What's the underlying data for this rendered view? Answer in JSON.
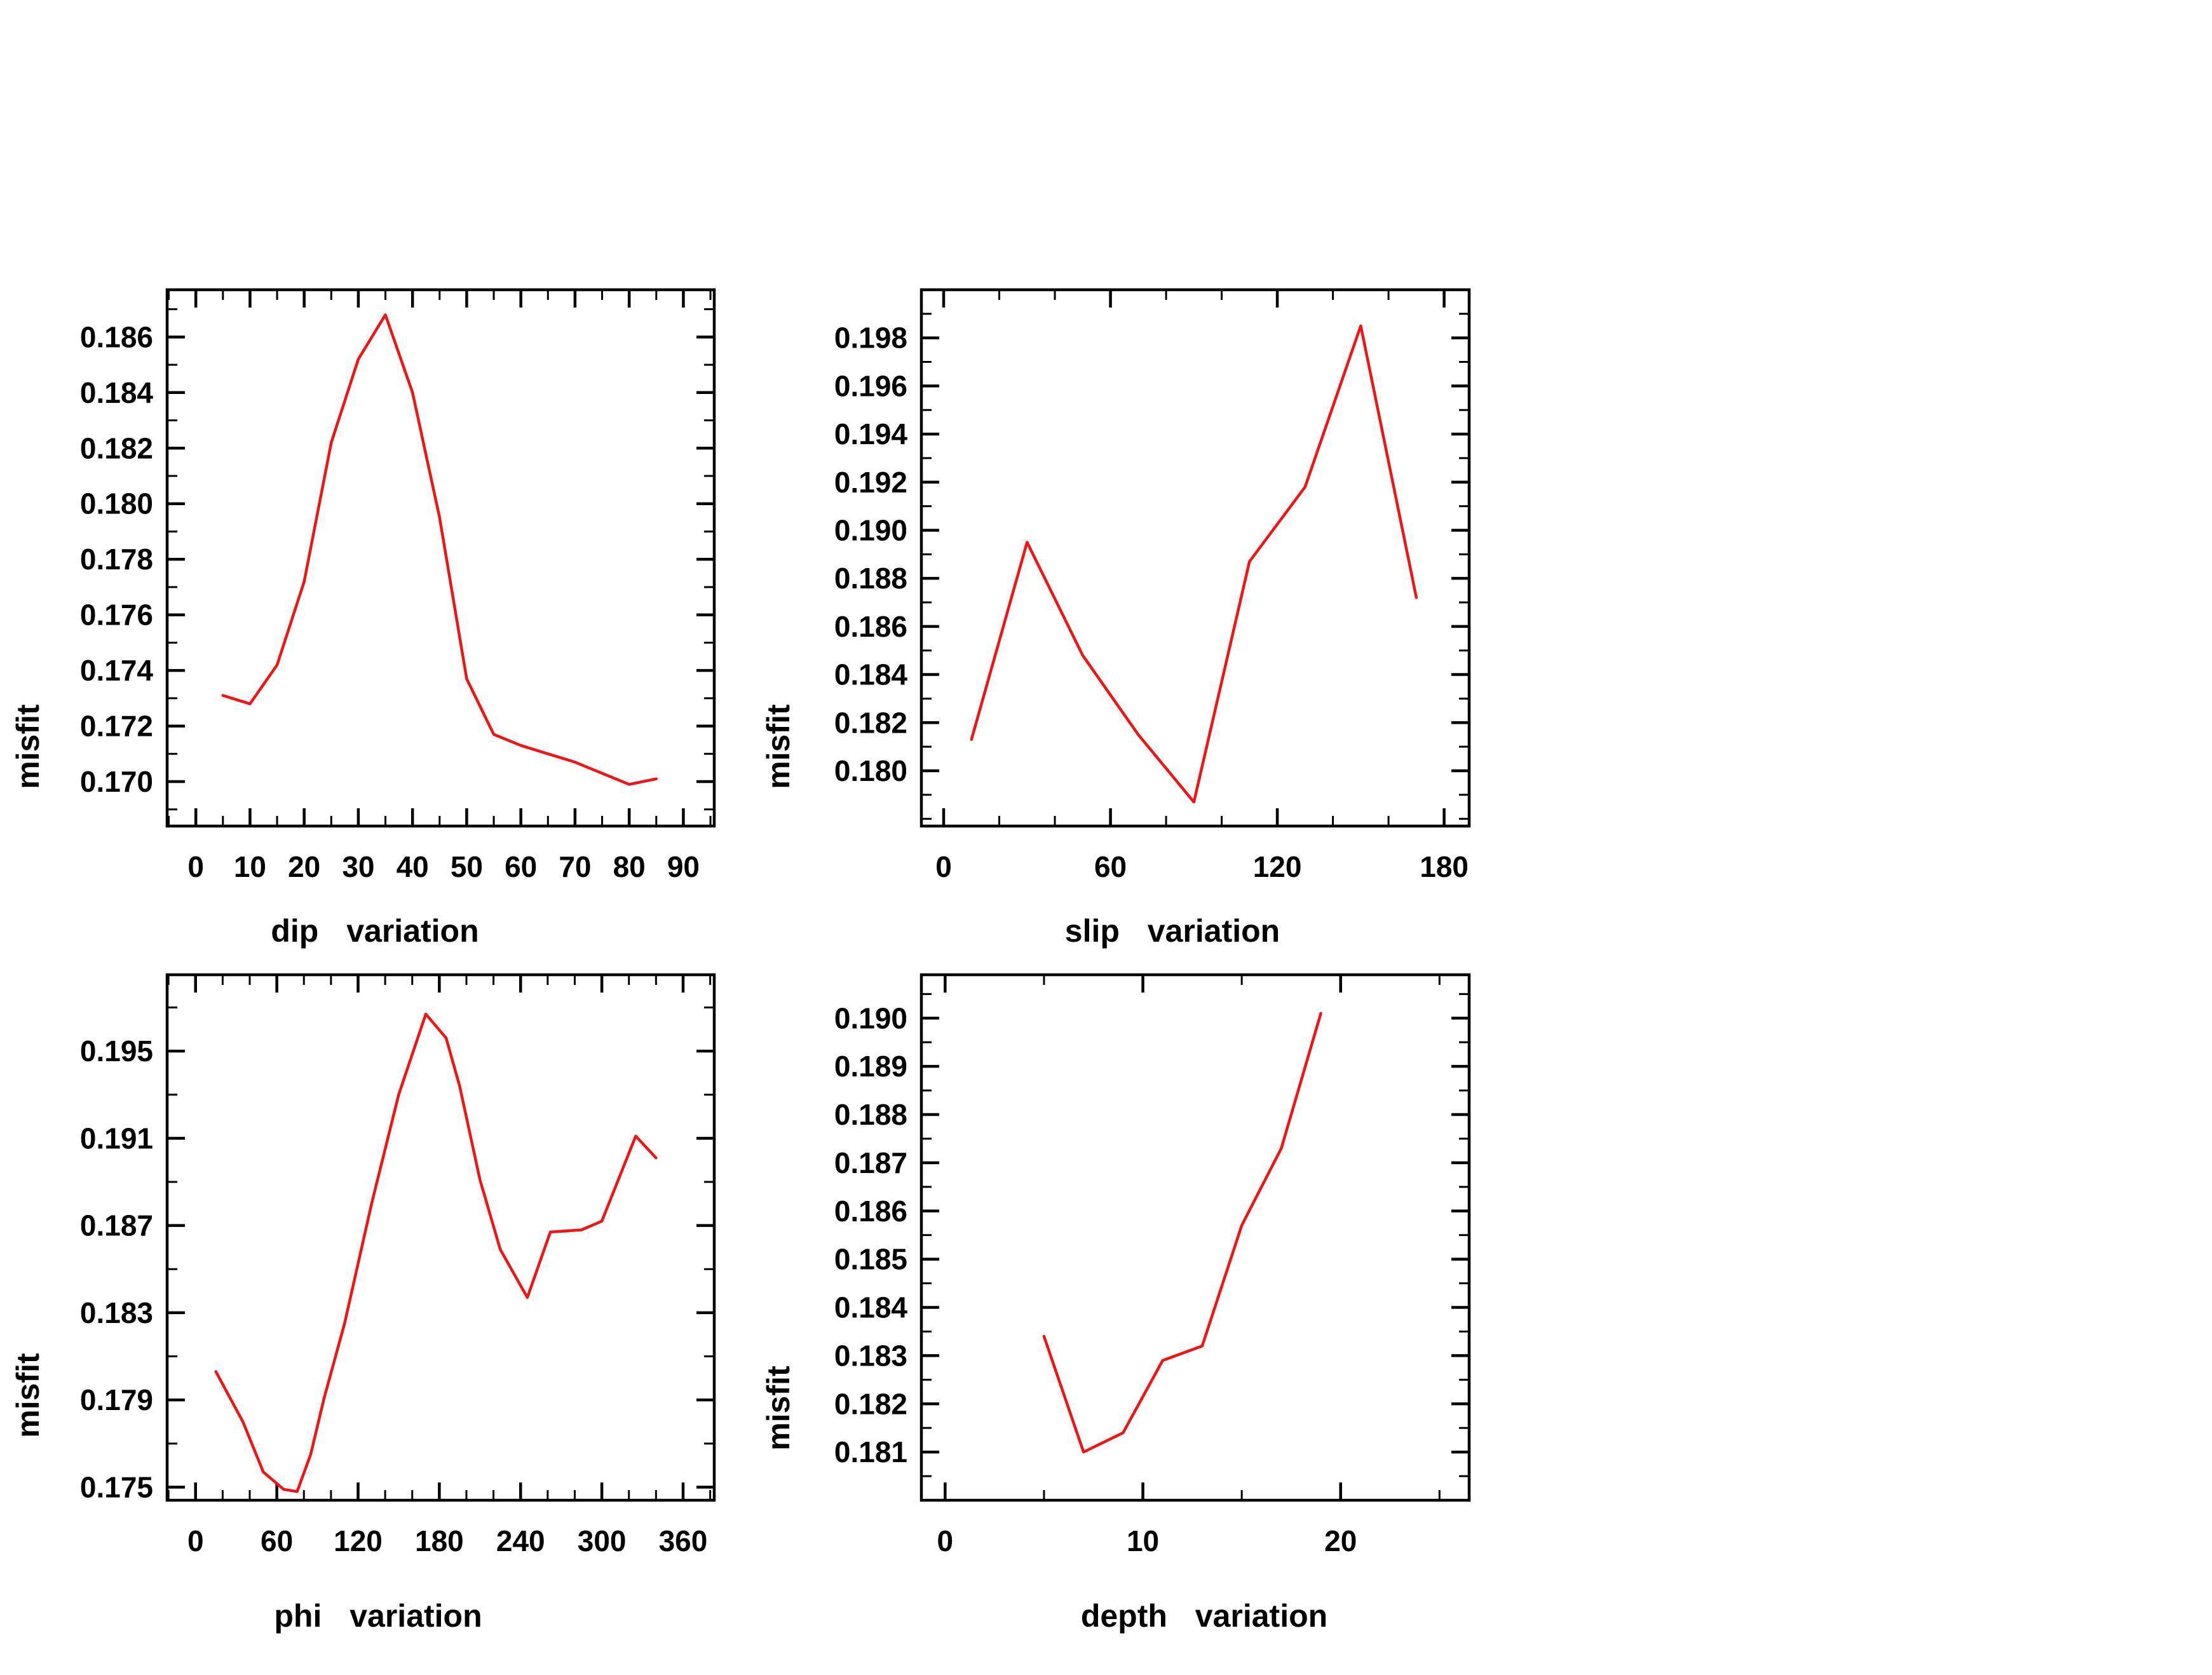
{
  "colors": {
    "background": "#ffffff",
    "axis": "#000000",
    "line": "#f01414"
  },
  "chart_data": [
    {
      "id": "dip",
      "type": "line",
      "title": "",
      "xlabel": "dip variation",
      "ylabel": "misfit",
      "grid": false,
      "legend": null,
      "line_color": "#f01414",
      "x": [
        5,
        10,
        15,
        20,
        25,
        30,
        35,
        40,
        45,
        50,
        55,
        60,
        65,
        70,
        75,
        80,
        85
      ],
      "y": [
        0.1731,
        0.1728,
        0.1742,
        0.1772,
        0.1822,
        0.1852,
        0.1868,
        0.184,
        0.1795,
        0.1737,
        0.1717,
        0.1713,
        0.171,
        0.1707,
        0.1703,
        0.1699,
        0.1701
      ],
      "xlim": [
        -5.3,
        95.7
      ],
      "ylim": [
        0.1684,
        0.1877
      ],
      "xticks": {
        "values": [
          0,
          10,
          20,
          30,
          40,
          50,
          60,
          70,
          80,
          90
        ],
        "labels": [
          "0",
          "10",
          "20",
          "30",
          "40",
          "50",
          "60",
          "70",
          "80",
          "90"
        ],
        "minor_step": 5
      },
      "yticks": {
        "values": [
          0.186,
          0.184,
          0.182,
          0.18,
          0.178,
          0.176,
          0.174,
          0.172,
          0.17
        ],
        "labels": [
          "0.186",
          "0.184",
          "0.182",
          "0.180",
          "0.178",
          "0.176",
          "0.174",
          "0.172",
          "0.170"
        ],
        "minor_step": 0.001
      }
    },
    {
      "id": "slip",
      "type": "line",
      "title": "",
      "xlabel": "slip variation",
      "ylabel": "misfit",
      "grid": false,
      "legend": null,
      "line_color": "#f01414",
      "x": [
        10,
        30,
        50,
        70,
        90,
        110,
        130,
        150,
        170
      ],
      "y": [
        0.1813,
        0.1895,
        0.1848,
        0.1815,
        0.1787,
        0.1887,
        0.1918,
        0.1985,
        0.1872
      ],
      "xlim": [
        -8,
        189
      ],
      "ylim": [
        0.1777,
        0.2
      ],
      "xticks": {
        "values": [
          0,
          60,
          120,
          180
        ],
        "labels": [
          "0",
          "60",
          "120",
          "180"
        ],
        "minor_step": 20
      },
      "yticks": {
        "values": [
          0.198,
          0.196,
          0.194,
          0.192,
          0.19,
          0.188,
          0.186,
          0.184,
          0.182,
          0.18
        ],
        "labels": [
          "0.198",
          "0.196",
          "0.194",
          "0.192",
          "0.190",
          "0.188",
          "0.186",
          "0.184",
          "0.182",
          "0.180"
        ],
        "minor_step": 0.001
      }
    },
    {
      "id": "phi",
      "type": "line",
      "title": "",
      "xlabel": "phi variation",
      "ylabel": "misfit",
      "grid": false,
      "legend": null,
      "line_color": "#f01414",
      "x": [
        15,
        35,
        50,
        65,
        75,
        85,
        95,
        110,
        130,
        150,
        170,
        185,
        195,
        210,
        225,
        245,
        262,
        285,
        300,
        325,
        340
      ],
      "y": [
        0.1803,
        0.178,
        0.1757,
        0.1749,
        0.1748,
        0.1765,
        0.1791,
        0.1825,
        0.188,
        0.193,
        0.1967,
        0.1956,
        0.1934,
        0.1891,
        0.1859,
        0.1837,
        0.1867,
        0.1868,
        0.1872,
        0.1911,
        0.1901
      ],
      "xlim": [
        -21,
        383
      ],
      "ylim": [
        0.1744,
        0.1985
      ],
      "xticks": {
        "values": [
          0,
          60,
          120,
          180,
          240,
          300,
          360
        ],
        "labels": [
          "0",
          "60",
          "120",
          "180",
          "240",
          "300",
          "360"
        ],
        "minor_step": 20
      },
      "yticks": {
        "values": [
          0.195,
          0.191,
          0.187,
          0.183,
          0.179,
          0.175
        ],
        "labels": [
          "0.195",
          "0.191",
          "0.187",
          "0.183",
          "0.179",
          "0.175"
        ],
        "minor_step": 0.002
      }
    },
    {
      "id": "depth",
      "type": "line",
      "title": "",
      "xlabel": "depth variation",
      "ylabel": "misfit",
      "grid": false,
      "legend": null,
      "line_color": "#f01414",
      "x": [
        5,
        7,
        9,
        11,
        13,
        15,
        17,
        19
      ],
      "y": [
        0.1834,
        0.181,
        0.1814,
        0.1829,
        0.1832,
        0.1857,
        0.1873,
        0.1901
      ],
      "xlim": [
        -1.2,
        26.5
      ],
      "ylim": [
        0.18,
        0.1909
      ],
      "xticks": {
        "values": [
          0,
          10,
          20
        ],
        "labels": [
          "0",
          "10",
          "20"
        ],
        "minor_step": 5
      },
      "yticks": {
        "values": [
          0.19,
          0.189,
          0.188,
          0.187,
          0.186,
          0.185,
          0.184,
          0.183,
          0.182,
          0.181
        ],
        "labels": [
          "0.190",
          "0.189",
          "0.188",
          "0.187",
          "0.186",
          "0.185",
          "0.184",
          "0.183",
          "0.182",
          "0.181"
        ],
        "minor_step": 0.0005
      }
    }
  ]
}
